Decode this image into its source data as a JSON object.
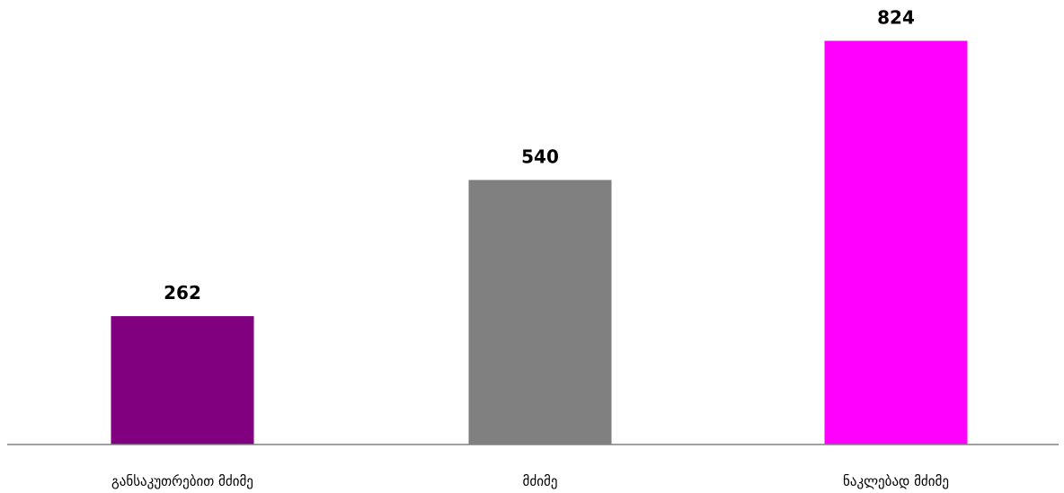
{
  "chart_data": {
    "type": "bar",
    "categories": [
      "განსაკუთრებით მძიმე",
      "მძიმე",
      "ნაკლებად მძიმე"
    ],
    "values": [
      262,
      540,
      824
    ],
    "data_labels": [
      "262",
      "540",
      "824"
    ],
    "colors": [
      "#800080",
      "#808080",
      "#FF00FF"
    ],
    "ylim": [
      0,
      900
    ],
    "grid": false,
    "legend": "none"
  }
}
